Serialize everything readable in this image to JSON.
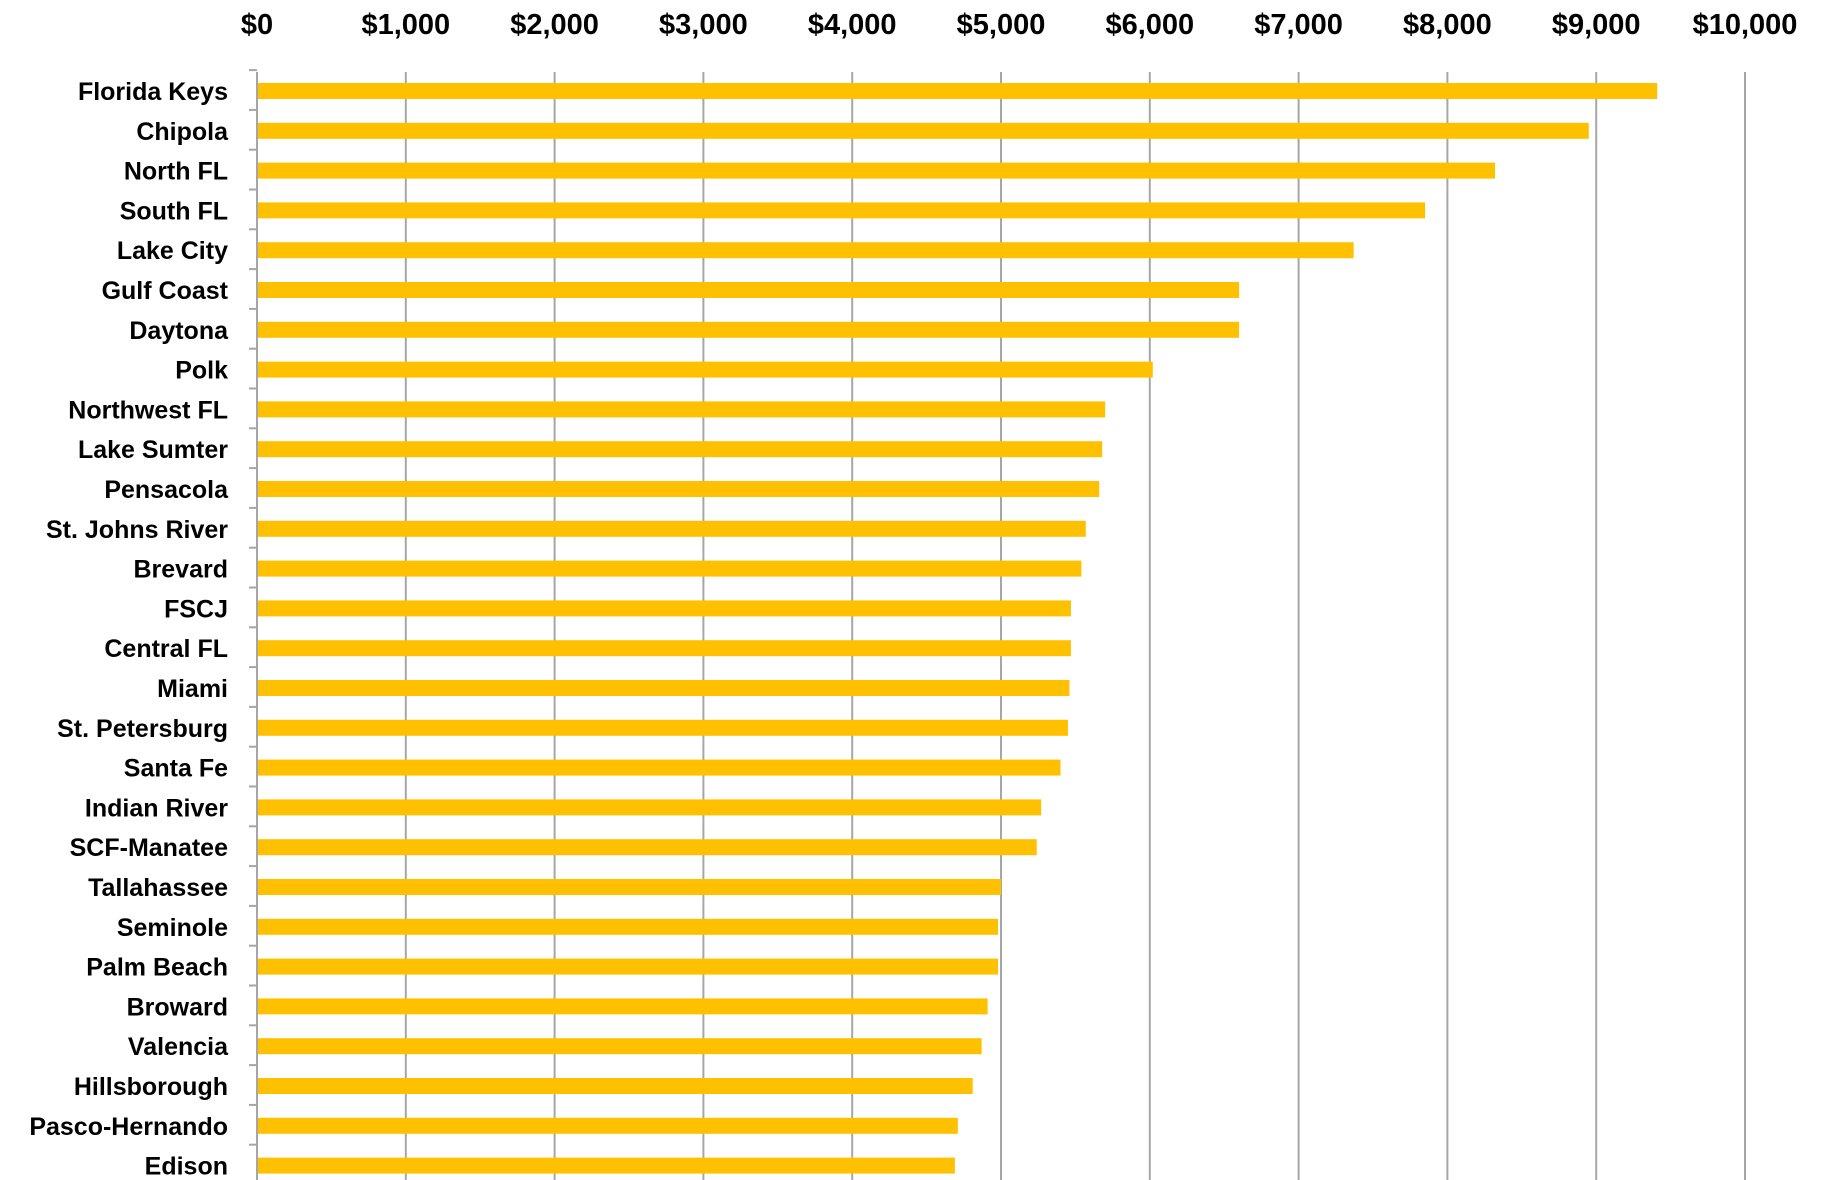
{
  "chart_data": {
    "type": "bar",
    "orientation": "horizontal",
    "title": "",
    "xlabel": "",
    "ylabel": "",
    "xlim": [
      0,
      10000
    ],
    "x_ticks": [
      0,
      1000,
      2000,
      3000,
      4000,
      5000,
      6000,
      7000,
      8000,
      9000,
      10000
    ],
    "x_tick_labels": [
      "$0",
      "$1,000",
      "$2,000",
      "$3,000",
      "$4,000",
      "$5,000",
      "$6,000",
      "$7,000",
      "$8,000",
      "$9,000",
      "$10,000"
    ],
    "x_axis_position": "top",
    "grid": "vertical",
    "legend": "none",
    "bar_color": "#FFC000",
    "grid_color": "#A6A6A6",
    "categories": [
      "Florida Keys",
      "Chipola",
      "North FL",
      "South FL",
      "Lake City",
      "Gulf Coast",
      "Daytona",
      "Polk",
      "Northwest FL",
      "Lake Sumter",
      "Pensacola",
      "St. Johns River",
      "Brevard",
      "FSCJ",
      "Central FL",
      "Miami",
      "St. Petersburg",
      "Santa Fe",
      "Indian River",
      "SCF-Manatee",
      "Tallahassee",
      "Seminole",
      "Palm Beach",
      "Broward",
      "Valencia",
      "Hillsborough",
      "Pasco-Hernando",
      "Edison"
    ],
    "values": [
      9410,
      8950,
      8320,
      7850,
      7370,
      6600,
      6600,
      6020,
      5700,
      5680,
      5660,
      5570,
      5540,
      5470,
      5470,
      5460,
      5450,
      5400,
      5270,
      5240,
      5000,
      4980,
      4980,
      4910,
      4870,
      4810,
      4710,
      4690
    ]
  }
}
